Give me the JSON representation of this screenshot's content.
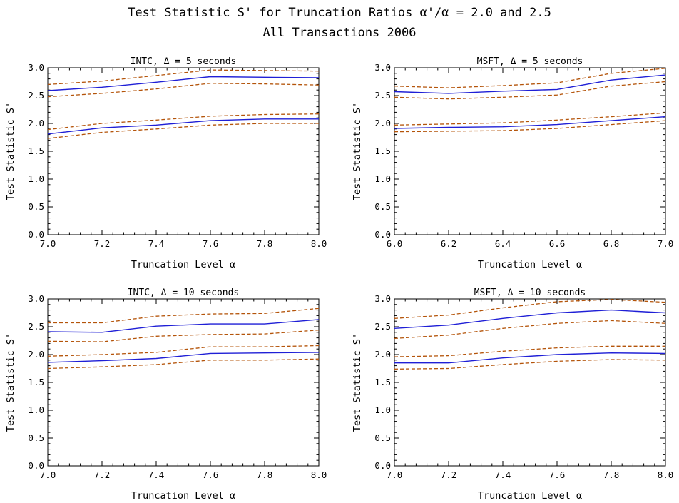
{
  "figure": {
    "title_line1": "Test Statistic S' for Truncation Ratios α'/α = 2.0 and 2.5",
    "title_line2": "All Transactions 2006"
  },
  "colors": {
    "central": "#1f1fd6",
    "band": "#b4540a"
  },
  "chart_data": [
    {
      "type": "line",
      "title": "INTC, Δ = 5 seconds",
      "xlabel": "Truncation Level α",
      "ylabel": "Test Statistic S'",
      "xlim": [
        7.0,
        8.0
      ],
      "ylim": [
        0.0,
        3.0
      ],
      "xticks": [
        "7.0",
        "7.2",
        "7.4",
        "7.6",
        "7.8",
        "8.0"
      ],
      "yticks": [
        "0.0",
        "0.5",
        "1.0",
        "1.5",
        "2.0",
        "2.5",
        "3.0"
      ],
      "x": [
        7.0,
        7.2,
        7.4,
        7.6,
        7.8,
        8.0
      ],
      "series": [
        {
          "style": "band",
          "values": [
            2.7,
            2.76,
            2.86,
            2.96,
            2.95,
            2.94
          ]
        },
        {
          "style": "central",
          "values": [
            2.59,
            2.65,
            2.74,
            2.84,
            2.83,
            2.82
          ]
        },
        {
          "style": "band",
          "values": [
            2.48,
            2.54,
            2.62,
            2.72,
            2.71,
            2.69
          ]
        },
        {
          "style": "band",
          "values": [
            1.89,
            2.0,
            2.06,
            2.13,
            2.16,
            2.17
          ]
        },
        {
          "style": "central",
          "values": [
            1.81,
            1.92,
            1.97,
            2.05,
            2.08,
            2.08
          ]
        },
        {
          "style": "band",
          "values": [
            1.73,
            1.84,
            1.9,
            1.97,
            2.0,
            2.0
          ]
        }
      ]
    },
    {
      "type": "line",
      "title": "MSFT, Δ = 5 seconds",
      "xlabel": "Truncation Level α",
      "ylabel": "Test Statistic S'",
      "xlim": [
        6.0,
        7.0
      ],
      "ylim": [
        0.0,
        3.0
      ],
      "xticks": [
        "6.0",
        "6.2",
        "6.4",
        "6.6",
        "6.8",
        "7.0"
      ],
      "yticks": [
        "0.0",
        "0.5",
        "1.0",
        "1.5",
        "2.0",
        "2.5",
        "3.0"
      ],
      "x": [
        6.0,
        6.2,
        6.4,
        6.6,
        6.8,
        7.0
      ],
      "series": [
        {
          "style": "band",
          "values": [
            2.67,
            2.64,
            2.68,
            2.73,
            2.9,
            2.99
          ]
        },
        {
          "style": "central",
          "values": [
            2.57,
            2.54,
            2.58,
            2.61,
            2.78,
            2.87
          ]
        },
        {
          "style": "band",
          "values": [
            2.47,
            2.44,
            2.47,
            2.51,
            2.67,
            2.75
          ]
        },
        {
          "style": "band",
          "values": [
            1.97,
            1.99,
            2.01,
            2.06,
            2.12,
            2.19
          ]
        },
        {
          "style": "central",
          "values": [
            1.91,
            1.93,
            1.94,
            1.98,
            2.05,
            2.12
          ]
        },
        {
          "style": "band",
          "values": [
            1.85,
            1.86,
            1.87,
            1.91,
            1.98,
            2.05
          ]
        }
      ]
    },
    {
      "type": "line",
      "title": "INTC, Δ = 10 seconds",
      "xlabel": "Truncation Level α",
      "ylabel": "Test Statistic S'",
      "xlim": [
        7.0,
        8.0
      ],
      "ylim": [
        0.0,
        3.0
      ],
      "xticks": [
        "7.0",
        "7.2",
        "7.4",
        "7.6",
        "7.8",
        "8.0"
      ],
      "yticks": [
        "0.0",
        "0.5",
        "1.0",
        "1.5",
        "2.0",
        "2.5",
        "3.0"
      ],
      "x": [
        7.0,
        7.2,
        7.4,
        7.6,
        7.8,
        8.0
      ],
      "series": [
        {
          "style": "band",
          "values": [
            2.57,
            2.57,
            2.69,
            2.73,
            2.74,
            2.83
          ]
        },
        {
          "style": "central",
          "values": [
            2.41,
            2.4,
            2.51,
            2.55,
            2.55,
            2.63
          ]
        },
        {
          "style": "band",
          "values": [
            2.24,
            2.23,
            2.33,
            2.36,
            2.37,
            2.44
          ]
        },
        {
          "style": "band",
          "values": [
            1.97,
            2.0,
            2.04,
            2.14,
            2.14,
            2.16
          ]
        },
        {
          "style": "central",
          "values": [
            1.86,
            1.89,
            1.93,
            2.02,
            2.03,
            2.04
          ]
        },
        {
          "style": "band",
          "values": [
            1.75,
            1.78,
            1.82,
            1.9,
            1.9,
            1.92
          ]
        }
      ]
    },
    {
      "type": "line",
      "title": "MSFT, Δ = 10 seconds",
      "xlabel": "Truncation Level α",
      "ylabel": "Test Statistic S'",
      "xlim": [
        7.0,
        8.0
      ],
      "ylim": [
        0.0,
        3.0
      ],
      "xticks": [
        "7.0",
        "7.2",
        "7.4",
        "7.6",
        "7.8",
        "8.0"
      ],
      "yticks": [
        "0.0",
        "0.5",
        "1.0",
        "1.5",
        "2.0",
        "2.5",
        "3.0"
      ],
      "x": [
        7.0,
        7.2,
        7.4,
        7.6,
        7.8,
        8.0
      ],
      "series": [
        {
          "style": "band",
          "values": [
            2.65,
            2.71,
            2.84,
            2.95,
            2.99,
            2.94
          ]
        },
        {
          "style": "central",
          "values": [
            2.47,
            2.53,
            2.65,
            2.75,
            2.8,
            2.75
          ]
        },
        {
          "style": "band",
          "values": [
            2.29,
            2.35,
            2.47,
            2.56,
            2.61,
            2.56
          ]
        },
        {
          "style": "band",
          "values": [
            1.96,
            1.98,
            2.06,
            2.12,
            2.15,
            2.15
          ]
        },
        {
          "style": "central",
          "values": [
            1.85,
            1.85,
            1.94,
            2.0,
            2.03,
            2.02
          ]
        },
        {
          "style": "band",
          "values": [
            1.74,
            1.75,
            1.82,
            1.88,
            1.91,
            1.9
          ]
        }
      ]
    }
  ]
}
